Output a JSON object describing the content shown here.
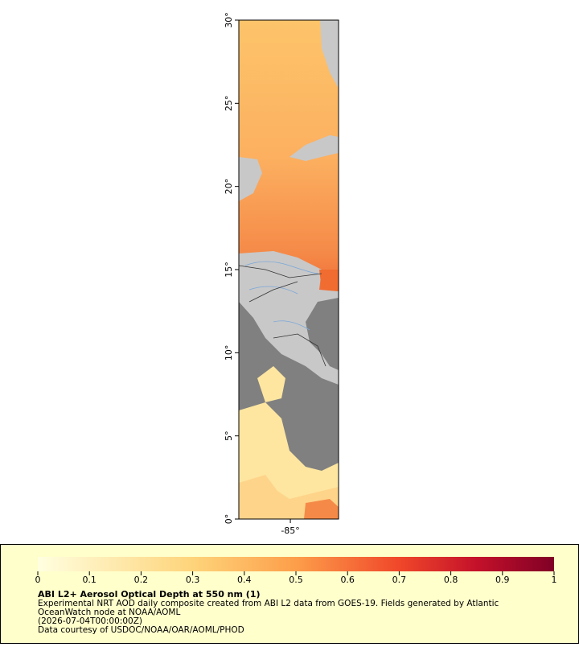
{
  "map": {
    "lat_ticks": [
      {
        "value": 0,
        "label": "0°"
      },
      {
        "value": 5,
        "label": "5°"
      },
      {
        "value": 10,
        "label": "10°"
      },
      {
        "value": 15,
        "label": "15°"
      },
      {
        "value": 20,
        "label": "20°"
      },
      {
        "value": 25,
        "label": "25°"
      },
      {
        "value": 30,
        "label": "30°"
      }
    ],
    "lon_range": [
      -88.1,
      -82.1
    ],
    "lon_ticks": [
      {
        "value": -85,
        "label": "-85°"
      }
    ]
  },
  "legend": {
    "colorbar_ticks": [
      0,
      0.1,
      0.2,
      0.3,
      0.4,
      0.5,
      0.6,
      0.7,
      0.8,
      0.9,
      1
    ],
    "title": "ABI L2+ Aerosol Optical Depth at 550 nm (1)",
    "description": [
      "Experimental NRT AOD daily composite created from ABI L2 data from GOES-19. Fields generated by Atlantic",
      "OceanWatch node at NOAA/AOML",
      "(2026-07-04T00:00:00Z)",
      "Data courtesy of USDOC/NOAA/OAR/AOML/PHOD"
    ]
  }
}
